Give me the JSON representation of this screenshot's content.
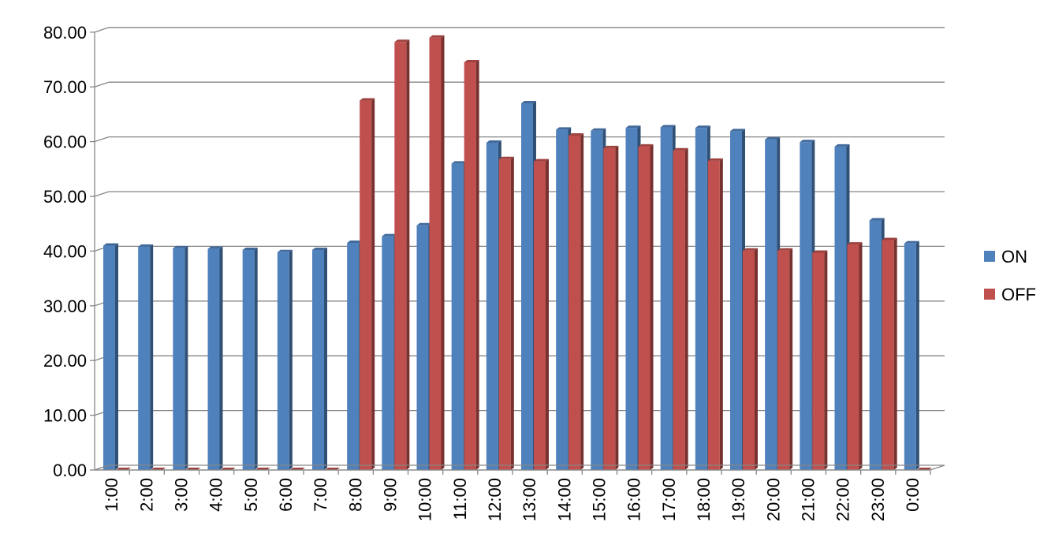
{
  "chart_data": {
    "type": "bar",
    "title": "",
    "xlabel": "",
    "ylabel": "",
    "ylim": [
      0,
      80
    ],
    "y_ticks": [
      "0.00",
      "10.00",
      "20.00",
      "30.00",
      "40.00",
      "50.00",
      "60.00",
      "70.00",
      "80.00"
    ],
    "y_tick_values": [
      0,
      10,
      20,
      30,
      40,
      50,
      60,
      70,
      80
    ],
    "grid": true,
    "legend_position": "right",
    "categories": [
      "1:00",
      "2:00",
      "3:00",
      "4:00",
      "5:00",
      "6:00",
      "7:00",
      "8:00",
      "9:00",
      "10:00",
      "11:00",
      "12:00",
      "13:00",
      "14:00",
      "15:00",
      "16:00",
      "17:00",
      "18:00",
      "19:00",
      "20:00",
      "21:00",
      "22:00",
      "23:00",
      "0:00"
    ],
    "series": [
      {
        "name": "ON",
        "color": "#4F81BD",
        "values": [
          41.0,
          40.8,
          40.5,
          40.4,
          40.2,
          39.8,
          40.2,
          41.5,
          42.7,
          44.7,
          56.0,
          59.8,
          67.0,
          62.2,
          62.0,
          62.5,
          62.6,
          62.5,
          61.9,
          60.4,
          59.9,
          59.1,
          45.6,
          41.4
        ]
      },
      {
        "name": "OFF",
        "color": "#C0504D",
        "values": [
          0,
          0,
          0,
          0,
          0,
          0,
          0,
          67.5,
          78.2,
          79.0,
          74.5,
          56.8,
          56.4,
          61.1,
          58.8,
          59.1,
          58.4,
          56.5,
          40.1,
          40.1,
          39.7,
          41.2,
          42.0,
          0
        ]
      }
    ]
  }
}
